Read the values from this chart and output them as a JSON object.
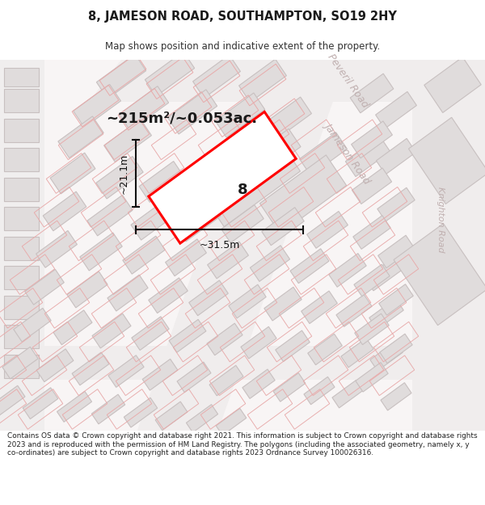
{
  "title": "8, JAMESON ROAD, SOUTHAMPTON, SO19 2HY",
  "subtitle": "Map shows position and indicative extent of the property.",
  "area_label": "~215m²/~0.053ac.",
  "property_number": "8",
  "width_label": "~31.5m",
  "height_label": "~21.1m",
  "footer": "Contains OS data © Crown copyright and database right 2021. This information is subject to Crown copyright and database rights 2023 and is reproduced with the permission of HM Land Registry. The polygons (including the associated geometry, namely x, y co-ordinates) are subject to Crown copyright and database rights 2023 Ordnance Survey 100026316.",
  "map_bg": "#f5f2f2",
  "road_bg": "#f0eded",
  "building_fill": "#e0dcdc",
  "building_edge": "#c8c0c0",
  "plot_fill": "#ffffff",
  "plot_edge": "#e8b8b8",
  "prop_edge": "#ff0000",
  "road_label_color": "#c0b0b0",
  "dim_color": "#111111",
  "text_color": "#1a1a1a"
}
